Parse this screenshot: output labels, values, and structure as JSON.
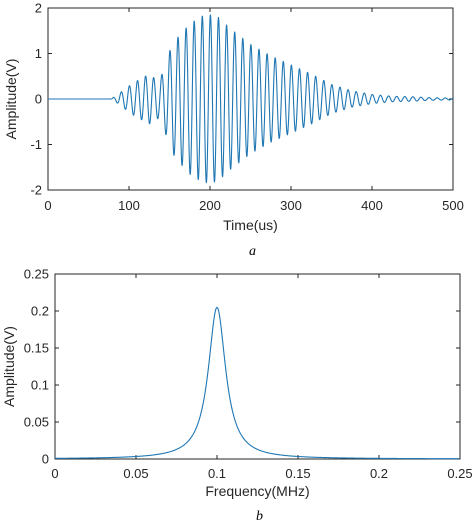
{
  "chart_data": [
    {
      "type": "line",
      "caption": "a",
      "xlabel": "Time(us)",
      "ylabel": "Amplitude(V)",
      "xlim": [
        0,
        500
      ],
      "ylim": [
        -2,
        2
      ],
      "xticks": [
        0,
        100,
        200,
        300,
        400,
        500
      ],
      "yticks": [
        -2,
        -1,
        0,
        1,
        2
      ],
      "xtick_labels": [
        "0",
        "100",
        "200",
        "300",
        "400",
        "500"
      ],
      "ytick_labels": [
        "-2",
        "-1",
        "0",
        "1",
        "2"
      ],
      "grid": false,
      "color": "#1f77b4",
      "series": [
        {
          "carrier_frequency_mhz": 0.1,
          "envelope": {
            "x": [
              0,
              78,
              85,
              95,
              105,
              115,
              125,
              132,
              138,
              145,
              152,
              160,
              175,
              190,
              200,
              210,
              225,
              250,
              275,
              300,
              325,
              350,
              375,
              400,
              425,
              450,
              470,
              500
            ],
            "y": [
              0,
              0,
              0.08,
              0.22,
              0.35,
              0.45,
              0.55,
              0.45,
              0.42,
              0.75,
              1.15,
              1.35,
              1.65,
              1.82,
              1.85,
              1.8,
              1.55,
              1.2,
              0.95,
              0.75,
              0.55,
              0.32,
              0.18,
              0.1,
              0.06,
              0.05,
              0.03,
              0.02
            ]
          }
        }
      ]
    },
    {
      "type": "line",
      "caption": "b",
      "xlabel": "Frequency(MHz)",
      "ylabel": "Amplitude(V)",
      "xlim": [
        0,
        0.25
      ],
      "ylim": [
        0,
        0.25
      ],
      "xticks": [
        0,
        0.05,
        0.1,
        0.15,
        0.2,
        0.25
      ],
      "yticks": [
        0,
        0.05,
        0.1,
        0.15,
        0.2,
        0.25
      ],
      "xtick_labels": [
        "0",
        "0.05",
        "0.1",
        "0.15",
        "0.2",
        "0.25"
      ],
      "ytick_labels": [
        "0",
        "0.05",
        "0.1",
        "0.15",
        "0.2",
        "0.25"
      ],
      "grid": false,
      "color": "#1f77b4",
      "series": [
        {
          "peak_x": 0.1,
          "peak_y": 0.205,
          "half_width_mhz": 0.0065
        }
      ]
    }
  ]
}
